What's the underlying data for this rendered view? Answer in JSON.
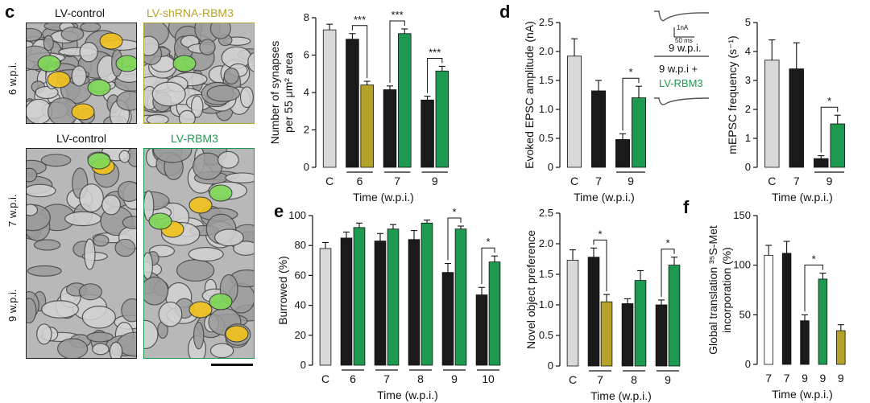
{
  "panels": {
    "c": {
      "letter": "c"
    },
    "d": {
      "letter": "d"
    },
    "e": {
      "letter": "e"
    },
    "f": {
      "letter": "f"
    }
  },
  "micrographs": {
    "top_left_label": "LV-control",
    "top_right_label": "LV-shRNA-RBM3",
    "bottom_left_label": "LV-control",
    "bottom_right_label": "LV-RBM3",
    "rows": [
      "6 w.p.i.",
      "7 w.p.i.",
      "9 w.p.i."
    ],
    "colors": {
      "control_border": "#222222",
      "shrna_border": "#b5a22a",
      "rbm3_border": "#1e9a50",
      "shrna_text": "#b5a22a",
      "rbm3_text": "#1e9a50"
    }
  },
  "trace_inset": {
    "scale_current": "1nA",
    "scale_time": "50 ms",
    "label_1": "9 w.p.i.",
    "label_2a": "9 w.p.i +",
    "label_2b": "LV-RBM3"
  },
  "colors": {
    "grey": "#d9d9d9",
    "black": "#1a1a1a",
    "olive": "#b5a22a",
    "green": "#1e9a50",
    "white": "#ffffff"
  },
  "chart_data": [
    {
      "id": "synapses",
      "type": "bar",
      "ylabel_line1": "Number of synapses",
      "ylabel_line2": "per 55 μm² area",
      "xlabel": "Time (w.p.i.)",
      "ylim": [
        0,
        8
      ],
      "yticks": [
        "0",
        "2",
        "4",
        "6",
        "8"
      ],
      "group_labels": [
        "C",
        "6",
        "7",
        "9"
      ],
      "bars": [
        {
          "value": 7.35,
          "err": 0.3,
          "color": "grey"
        },
        {
          "value": 6.85,
          "err": 0.3,
          "color": "black"
        },
        {
          "value": 4.4,
          "err": 0.2,
          "color": "olive"
        },
        {
          "value": 4.15,
          "err": 0.2,
          "color": "black"
        },
        {
          "value": 7.15,
          "err": 0.25,
          "color": "green"
        },
        {
          "value": 3.6,
          "err": 0.2,
          "color": "black"
        },
        {
          "value": 5.15,
          "err": 0.25,
          "color": "green"
        }
      ],
      "sig": [
        {
          "a": 1,
          "b": 2,
          "text": "***"
        },
        {
          "a": 3,
          "b": 4,
          "text": "***"
        },
        {
          "a": 5,
          "b": 6,
          "text": "***"
        }
      ]
    },
    {
      "id": "epsc",
      "type": "bar",
      "ylabel_line1": "Evoked EPSC amplitude (nA)",
      "ylabel_line2": "",
      "xlabel": "Time (w.p.i.)",
      "ylim": [
        0,
        2.5
      ],
      "yticks": [
        "0",
        "0.5",
        "1.0",
        "1.5",
        "2.0",
        "2.5"
      ],
      "group_labels": [
        "C",
        "7",
        "9"
      ],
      "bars": [
        {
          "value": 1.92,
          "err": 0.3,
          "color": "grey"
        },
        {
          "value": 1.32,
          "err": 0.18,
          "color": "black"
        },
        {
          "value": 0.48,
          "err": 0.1,
          "color": "black"
        },
        {
          "value": 1.2,
          "err": 0.2,
          "color": "green"
        }
      ],
      "sig": [
        {
          "a": 2,
          "b": 3,
          "text": "*"
        }
      ]
    },
    {
      "id": "mepsc",
      "type": "bar",
      "ylabel_line1": "mEPSC frequency (s⁻¹)",
      "ylabel_line2": "",
      "xlabel": "Time (w.p.i.)",
      "ylim": [
        0,
        5
      ],
      "yticks": [
        "0",
        "1",
        "2",
        "3",
        "4",
        "5"
      ],
      "group_labels": [
        "C",
        "7",
        "9"
      ],
      "bars": [
        {
          "value": 3.7,
          "err": 0.7,
          "color": "grey"
        },
        {
          "value": 3.4,
          "err": 0.9,
          "color": "black"
        },
        {
          "value": 0.3,
          "err": 0.1,
          "color": "black"
        },
        {
          "value": 1.5,
          "err": 0.3,
          "color": "green"
        }
      ],
      "sig": [
        {
          "a": 2,
          "b": 3,
          "text": "*"
        }
      ]
    },
    {
      "id": "burrowed",
      "type": "bar",
      "ylabel_line1": "Burrowed (%)",
      "ylabel_line2": "",
      "xlabel": "Time (w.p.i.)",
      "ylim": [
        0,
        100
      ],
      "yticks": [
        "0",
        "20",
        "40",
        "60",
        "80",
        "100"
      ],
      "group_labels": [
        "C",
        "6",
        "7",
        "8",
        "9",
        "10"
      ],
      "bars": [
        {
          "value": 78,
          "err": 4,
          "color": "grey"
        },
        {
          "value": 85,
          "err": 4,
          "color": "black"
        },
        {
          "value": 92,
          "err": 3,
          "color": "green"
        },
        {
          "value": 83,
          "err": 5,
          "color": "black"
        },
        {
          "value": 91,
          "err": 3,
          "color": "green"
        },
        {
          "value": 84,
          "err": 6,
          "color": "black"
        },
        {
          "value": 95,
          "err": 2,
          "color": "green"
        },
        {
          "value": 62,
          "err": 6,
          "color": "black"
        },
        {
          "value": 91,
          "err": 2,
          "color": "green"
        },
        {
          "value": 47,
          "err": 5,
          "color": "black"
        },
        {
          "value": 69,
          "err": 4,
          "color": "green"
        }
      ],
      "sig": [
        {
          "a": 7,
          "b": 8,
          "text": "*"
        },
        {
          "a": 9,
          "b": 10,
          "text": "*"
        }
      ]
    },
    {
      "id": "novel",
      "type": "bar",
      "ylabel_line1": "Novel object preference",
      "ylabel_line2": "",
      "xlabel": "Time (w.p.i.)",
      "ylim": [
        0,
        2.5
      ],
      "yticks": [
        "0",
        "0.5",
        "1.0",
        "1.5",
        "2.0",
        "2.5"
      ],
      "group_labels": [
        "C",
        "7",
        "8",
        "9"
      ],
      "bars": [
        {
          "value": 1.73,
          "err": 0.17,
          "color": "grey"
        },
        {
          "value": 1.78,
          "err": 0.15,
          "color": "black"
        },
        {
          "value": 1.05,
          "err": 0.12,
          "color": "olive"
        },
        {
          "value": 1.02,
          "err": 0.08,
          "color": "black"
        },
        {
          "value": 1.4,
          "err": 0.16,
          "color": "green"
        },
        {
          "value": 1.0,
          "err": 0.08,
          "color": "black"
        },
        {
          "value": 1.65,
          "err": 0.13,
          "color": "green"
        }
      ],
      "sig": [
        {
          "a": 1,
          "b": 2,
          "text": "*"
        },
        {
          "a": 5,
          "b": 6,
          "text": "*"
        }
      ]
    },
    {
      "id": "translation",
      "type": "bar",
      "ylabel_line1": "Global translation ³⁵S-Met",
      "ylabel_line2": "incorporation (%)",
      "xlabel": "Time (w.p.i.)",
      "ylim": [
        0,
        150
      ],
      "yticks": [
        "0",
        "50",
        "100",
        "150"
      ],
      "group_labels": [
        "7",
        "7",
        "9",
        "9",
        "9"
      ],
      "bars": [
        {
          "value": 110,
          "err": 10,
          "color": "white"
        },
        {
          "value": 112,
          "err": 12,
          "color": "black"
        },
        {
          "value": 44,
          "err": 6,
          "color": "black"
        },
        {
          "value": 86,
          "err": 6,
          "color": "green"
        },
        {
          "value": 34,
          "err": 6,
          "color": "olive"
        }
      ],
      "sig": [
        {
          "a": 2,
          "b": 3,
          "text": "*"
        }
      ]
    }
  ]
}
